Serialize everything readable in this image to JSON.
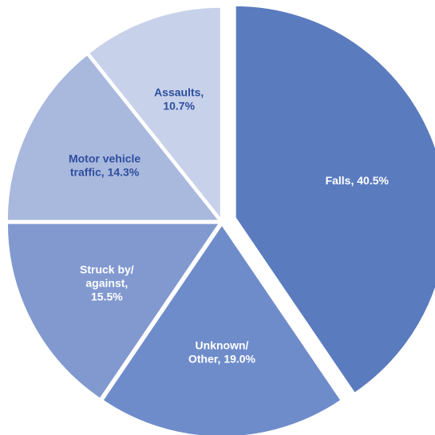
{
  "chart_data": {
    "type": "pie",
    "title": "",
    "slices": [
      {
        "label_lines": [
          "Falls, 40.5%"
        ],
        "value": 40.5,
        "color": "#5b7bbf",
        "label_color": "#ffffff"
      },
      {
        "label_lines": [
          "Unknown/",
          "Other, 19.0%"
        ],
        "value": 19.0,
        "color": "#6f8cca",
        "label_color": "#ffffff"
      },
      {
        "label_lines": [
          "Struck by/",
          "against,",
          "15.5%"
        ],
        "value": 15.5,
        "color": "#8199cf",
        "label_color": "#ffffff"
      },
      {
        "label_lines": [
          "Motor vehicle",
          "traffic, 14.3%"
        ],
        "value": 14.3,
        "color": "#a9b8dd",
        "label_color": "#2e4f9e"
      },
      {
        "label_lines": [
          "Assaults,",
          "10.7%"
        ],
        "value": 10.7,
        "color": "#c7d1ea",
        "label_color": "#2e4f9e"
      }
    ]
  }
}
